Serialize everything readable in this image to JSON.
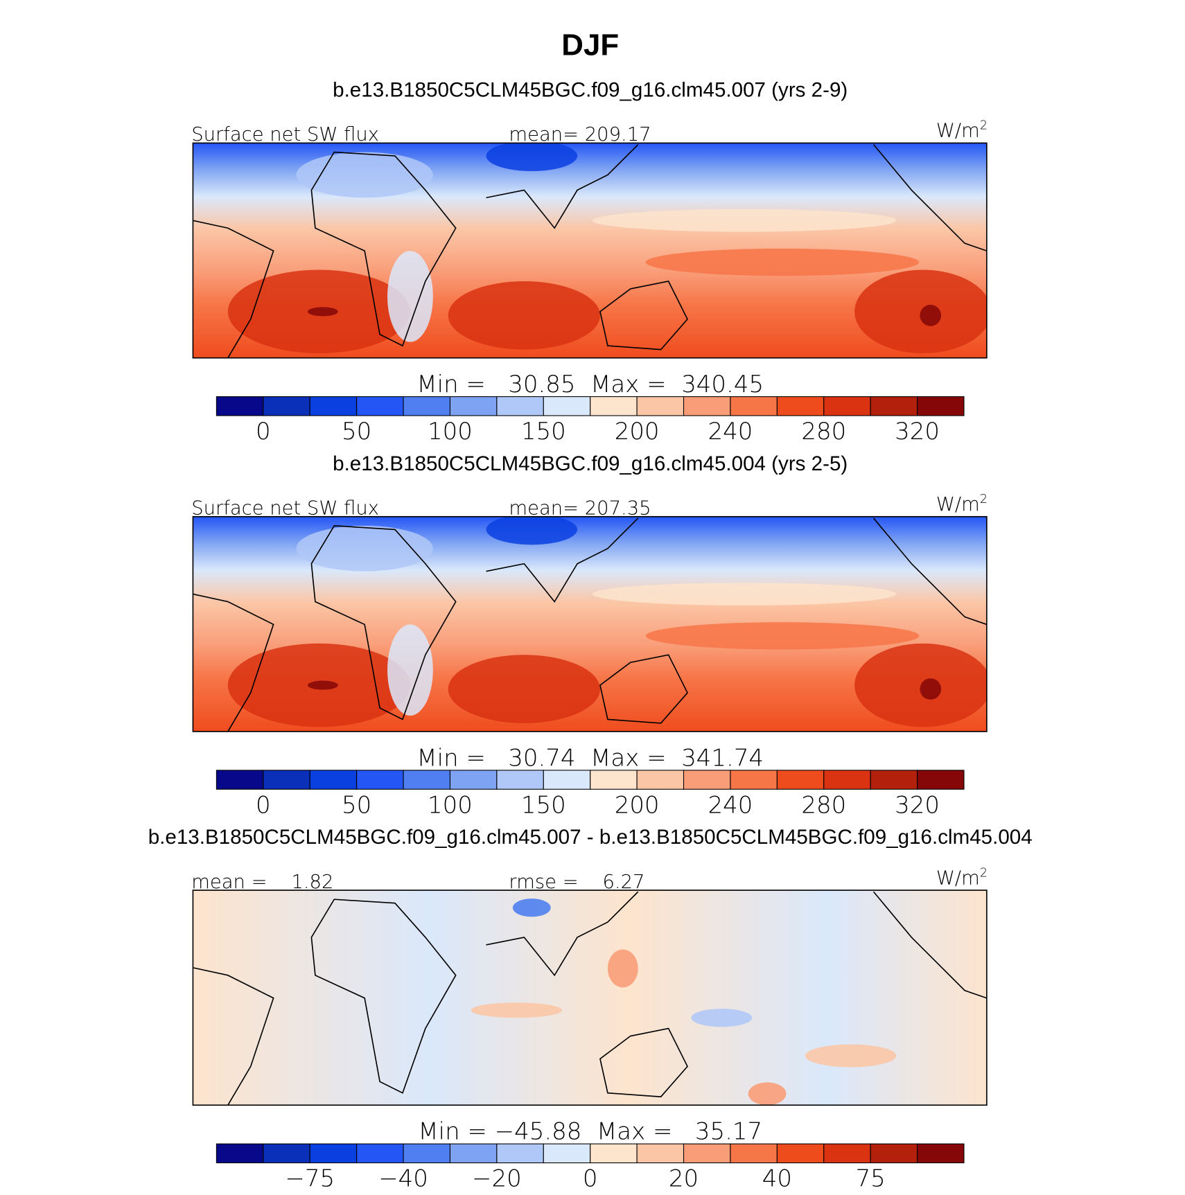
{
  "title": "DJF",
  "panels": [
    {
      "subtitle": "b.e13.B1850C5CLM45BGC.f09_g16.clm45.007 (yrs 2-9)",
      "left_label": "Surface net SW flux",
      "center_label": "mean= 209.17",
      "units": {
        "base": "W/m",
        "sup": "2"
      },
      "min_max": "Min =   30.85  Max =  340.45",
      "colorbar": {
        "colors": [
          "#08088a",
          "#0a2fb8",
          "#0a3fe0",
          "#2456f5",
          "#4f7ff0",
          "#7ea3f3",
          "#b0c8f7",
          "#dae8fb",
          "#fde4cd",
          "#fbc6a6",
          "#f99d79",
          "#f77648",
          "#ef4c1e",
          "#d93312",
          "#b3200c",
          "#850707"
        ],
        "ticks": [
          0,
          50,
          100,
          150,
          200,
          240,
          280,
          320
        ]
      }
    },
    {
      "subtitle": "b.e13.B1850C5CLM45BGC.f09_g16.clm45.004 (yrs 2-5)",
      "left_label": "Surface net SW flux",
      "center_label": "mean= 207.35",
      "units": {
        "base": "W/m",
        "sup": "2"
      },
      "min_max": "Min =   30.74  Max =  341.74",
      "colorbar": {
        "colors": [
          "#08088a",
          "#0a2fb8",
          "#0a3fe0",
          "#2456f5",
          "#4f7ff0",
          "#7ea3f3",
          "#b0c8f7",
          "#dae8fb",
          "#fde4cd",
          "#fbc6a6",
          "#f99d79",
          "#f77648",
          "#ef4c1e",
          "#d93312",
          "#b3200c",
          "#850707"
        ],
        "ticks": [
          0,
          50,
          100,
          150,
          200,
          240,
          280,
          320
        ]
      }
    },
    {
      "subtitle": "b.e13.B1850C5CLM45BGC.f09_g16.clm45.007 - b.e13.B1850C5CLM45BGC.f09_g16.clm45.004",
      "left_label": "mean =    1.82",
      "center_label": "rmse =    6.27",
      "units": {
        "base": "W/m",
        "sup": "2"
      },
      "min_max": "Min = −45.88  Max =   35.17",
      "colorbar": {
        "colors": [
          "#08088a",
          "#0a2fb8",
          "#0a3fe0",
          "#2456f5",
          "#4f7ff0",
          "#7ea3f3",
          "#b0c8f7",
          "#dae8fb",
          "#fde4cd",
          "#fbc6a6",
          "#f99d79",
          "#f77648",
          "#ef4c1e",
          "#d93312",
          "#b3200c",
          "#850707"
        ],
        "ticks": [
          {
            "value": -75,
            "label": "−75"
          },
          {
            "value": -40,
            "label": "−40"
          },
          {
            "value": -20,
            "label": "−20"
          },
          0,
          20,
          40,
          75
        ]
      }
    }
  ]
}
